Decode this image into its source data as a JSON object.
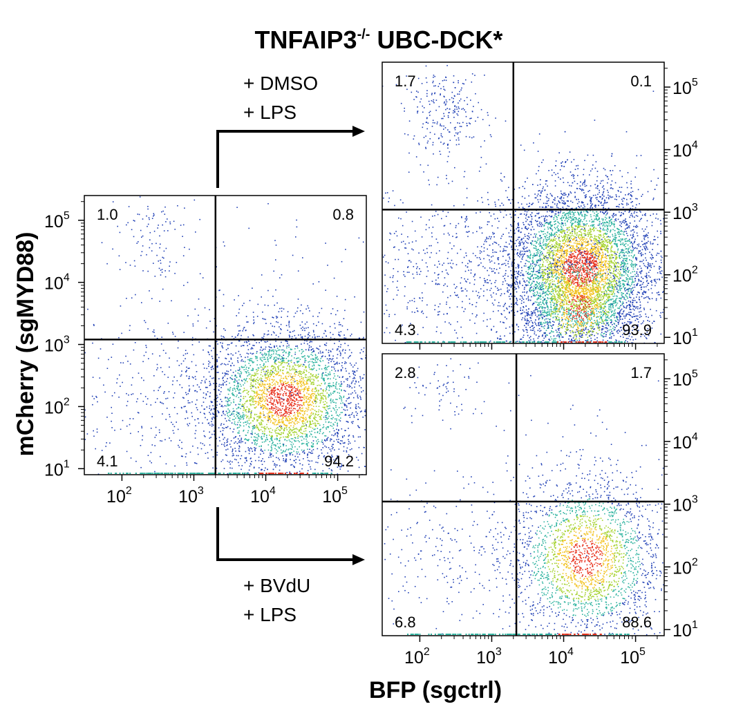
{
  "figure": {
    "title": "TNFAIP3",
    "title_sup": "-/-",
    "title_suffix": " UBC-DCK*",
    "arrow_top": {
      "line1": "+ DMSO",
      "line2": "+ LPS"
    },
    "arrow_bottom": {
      "line1": "+ BVdU",
      "line2": "+ LPS"
    },
    "y_axis_label": "mCherry (sgMYD88)",
    "x_axis_label": "BFP (sgctrl)",
    "colors": {
      "low": "#1f3fb5",
      "mid": "#2fb3a0",
      "mid2": "#a5d22e",
      "high_mid": "#f2c21f",
      "high": "#e8321e",
      "line": "#000000"
    }
  },
  "chart_data": [
    {
      "type": "scatter",
      "name": "parent",
      "x_scale": "log10",
      "y_scale": "log10",
      "xlim": [
        30,
        250000
      ],
      "ylim": [
        8,
        250000
      ],
      "x_ticks": [
        100,
        1000,
        10000,
        100000
      ],
      "x_tick_labels": [
        "10",
        "10",
        "10",
        "10"
      ],
      "x_tick_exps": [
        "2",
        "3",
        "4",
        "5"
      ],
      "y_ticks": [
        10,
        100,
        1000,
        10000,
        100000
      ],
      "y_tick_labels": [
        "10",
        "10",
        "10",
        "10",
        "10"
      ],
      "y_tick_exps": [
        "1",
        "2",
        "3",
        "4",
        "5"
      ],
      "y_axis_side": "left",
      "x_axis_shown": true,
      "gate": {
        "x": 2000,
        "y": 1200
      },
      "quadrants": {
        "upper_left": "1.0",
        "upper_right": "0.8",
        "lower_left": "4.1",
        "lower_right": "94.2"
      },
      "clusters": [
        {
          "cx": 18000,
          "cy": 130,
          "sx": 0.26,
          "sy": 0.27,
          "n": 3600,
          "dense": true
        },
        {
          "cx": 300,
          "cy": 130,
          "sx": 0.38,
          "sy": 0.3,
          "n": 320
        },
        {
          "cx": 230,
          "cy": 50000,
          "sx": 0.13,
          "sy": 0.2,
          "n": 110
        },
        {
          "cx": 20000,
          "cy": 3000,
          "sx": 0.3,
          "sy": 0.45,
          "n": 90
        },
        {
          "cx": 1500,
          "cy": 800,
          "sx": 0.4,
          "sy": 0.4,
          "n": 60
        }
      ]
    },
    {
      "type": "scatter",
      "name": "DMSO + LPS",
      "x_scale": "log10",
      "y_scale": "log10",
      "xlim": [
        30,
        250000
      ],
      "ylim": [
        8,
        250000
      ],
      "x_ticks": [
        100,
        1000,
        10000,
        100000
      ],
      "y_ticks": [
        10,
        100,
        1000,
        10000,
        100000
      ],
      "y_tick_labels": [
        "10",
        "10",
        "10",
        "10",
        "10"
      ],
      "y_tick_exps": [
        "1",
        "2",
        "3",
        "4",
        "5"
      ],
      "y_axis_side": "right",
      "x_axis_shown": false,
      "gate": {
        "x": 2000,
        "y": 1100
      },
      "quadrants": {
        "upper_left": "1.7",
        "upper_right": "0.1",
        "lower_left": "4.3",
        "lower_right": "93.9"
      },
      "clusters": [
        {
          "cx": 17000,
          "cy": 130,
          "sx": 0.24,
          "sy": 0.3,
          "n": 6000,
          "dense": true
        },
        {
          "cx": 16000,
          "cy": 30,
          "sx": 0.18,
          "sy": 0.22,
          "n": 1200,
          "dense": true
        },
        {
          "cx": 350,
          "cy": 120,
          "sx": 0.42,
          "sy": 0.3,
          "n": 650
        },
        {
          "cx": 220,
          "cy": 40000,
          "sx": 0.13,
          "sy": 0.16,
          "n": 260
        },
        {
          "cx": 18000,
          "cy": 1200,
          "sx": 0.15,
          "sy": 0.15,
          "n": 30
        }
      ]
    },
    {
      "type": "scatter",
      "name": "BVdU + LPS",
      "x_scale": "log10",
      "y_scale": "log10",
      "xlim": [
        30,
        250000
      ],
      "ylim": [
        8,
        250000
      ],
      "x_ticks": [
        100,
        1000,
        10000,
        100000
      ],
      "x_tick_labels": [
        "10",
        "10",
        "10",
        "10"
      ],
      "x_tick_exps": [
        "2",
        "3",
        "4",
        "5"
      ],
      "y_ticks": [
        10,
        100,
        1000,
        10000,
        100000
      ],
      "y_tick_labels": [
        "10",
        "10",
        "10",
        "10",
        "10"
      ],
      "y_tick_exps": [
        "1",
        "2",
        "3",
        "4",
        "5"
      ],
      "y_axis_side": "right",
      "x_axis_shown": true,
      "gate": {
        "x": 2200,
        "y": 1100
      },
      "quadrants": {
        "upper_left": "2.8",
        "upper_right": "1.7",
        "lower_left": "6.8",
        "lower_right": "88.6"
      },
      "clusters": [
        {
          "cx": 20000,
          "cy": 140,
          "sx": 0.24,
          "sy": 0.3,
          "n": 2400,
          "dense": true
        },
        {
          "cx": 200,
          "cy": 150,
          "sx": 0.22,
          "sy": 0.3,
          "n": 200
        },
        {
          "cx": 250,
          "cy": 60000,
          "sx": 0.14,
          "sy": 0.12,
          "n": 70
        },
        {
          "cx": 6000,
          "cy": 3000,
          "sx": 0.35,
          "sy": 0.4,
          "n": 45
        }
      ]
    }
  ]
}
